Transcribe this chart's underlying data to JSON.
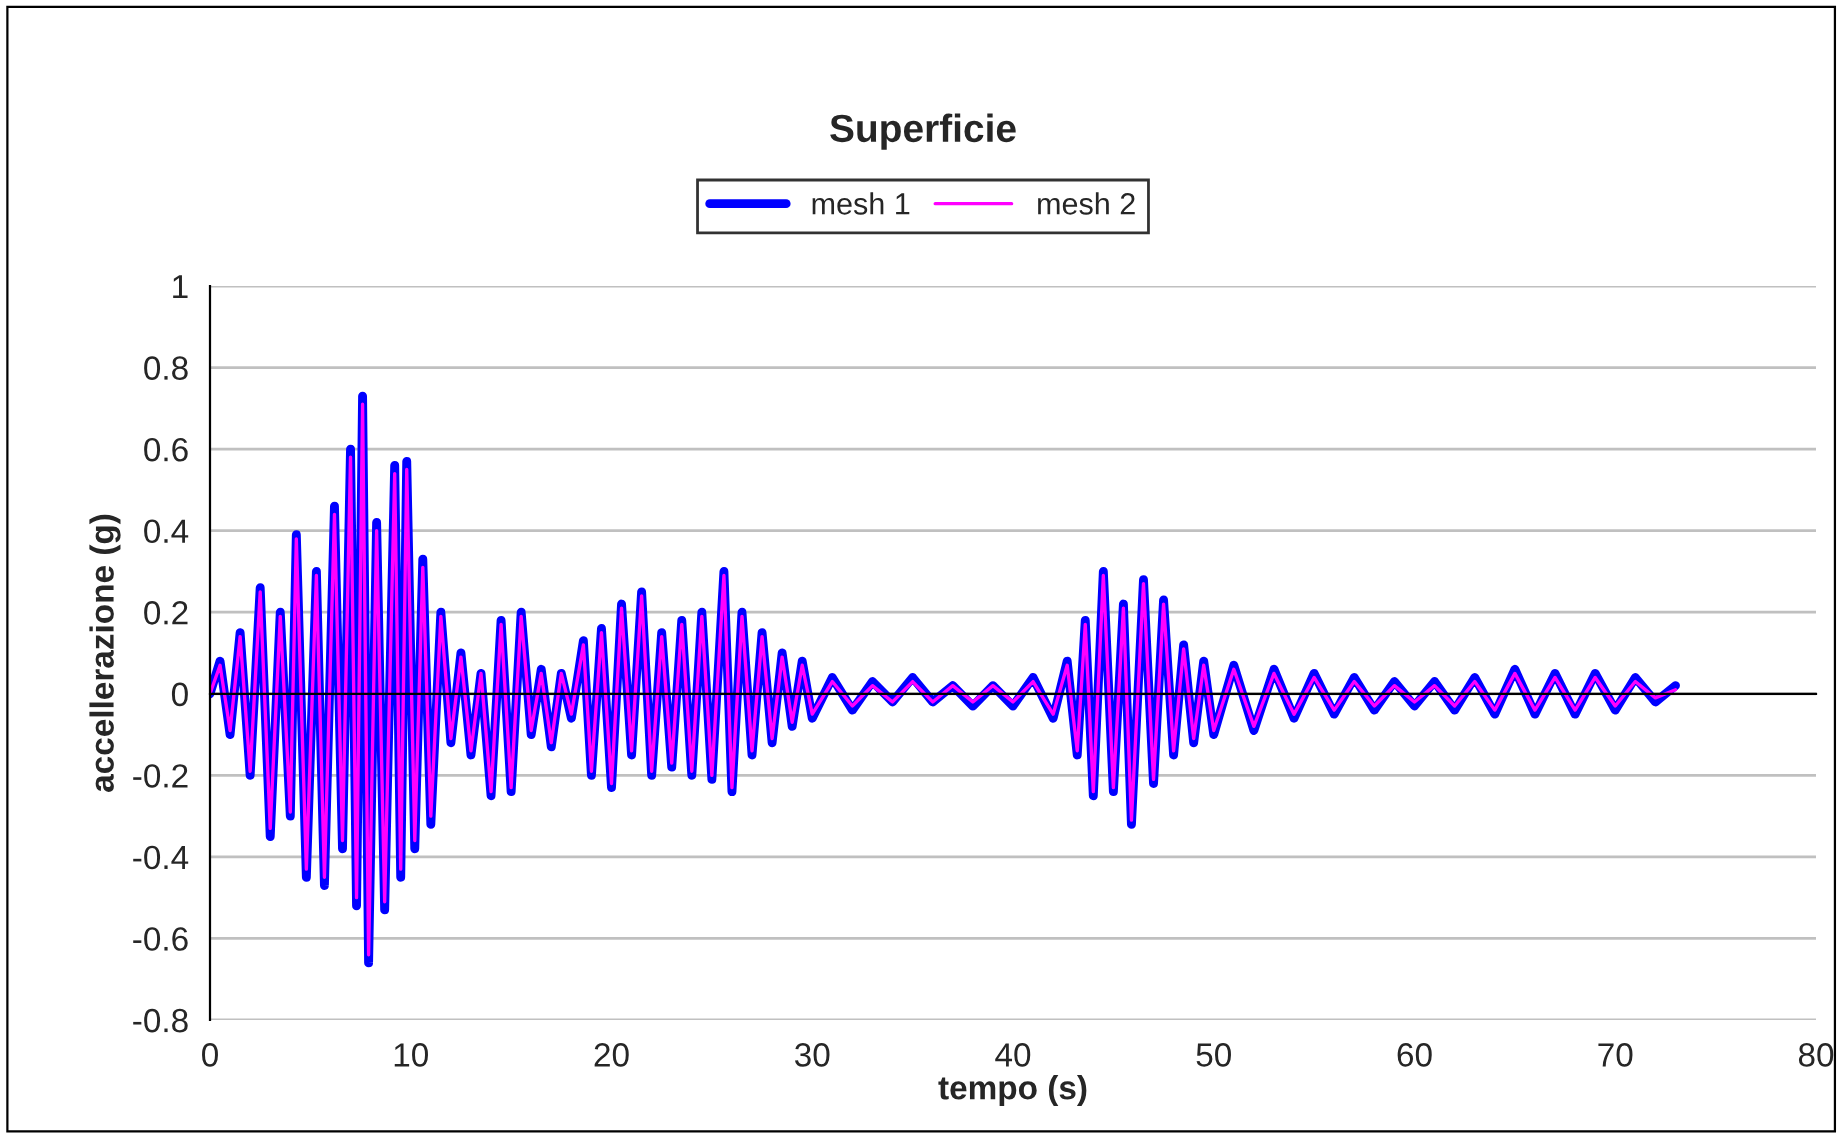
{
  "chart_data": {
    "type": "line",
    "title": "Superficie",
    "xlabel": "tempo (s)",
    "ylabel": "accellerazione (g)",
    "x": [
      0,
      0.5,
      1,
      1.5,
      2,
      2.5,
      3,
      3.5,
      4,
      4.3,
      4.8,
      5.3,
      5.7,
      6.2,
      6.6,
      7.0,
      7.3,
      7.6,
      7.9,
      8.3,
      8.7,
      9.2,
      9.5,
      9.8,
      10.2,
      10.6,
      11,
      11.5,
      12,
      12.5,
      13,
      13.5,
      14,
      14.5,
      15,
      15.5,
      16,
      16.5,
      17,
      17.5,
      18,
      18.6,
      19,
      19.5,
      20,
      20.5,
      21,
      21.5,
      22,
      22.5,
      23,
      23.5,
      24,
      24.5,
      25,
      25.6,
      26,
      26.5,
      27,
      27.5,
      28,
      28.5,
      29,
      29.5,
      30,
      31,
      32,
      33,
      34,
      35,
      36,
      37,
      38,
      39,
      40,
      41,
      42,
      42.7,
      43.2,
      43.6,
      44,
      44.5,
      45,
      45.5,
      45.9,
      46.5,
      47,
      47.5,
      48,
      48.5,
      49,
      49.5,
      50,
      51,
      52,
      53,
      54,
      55,
      56,
      57,
      58,
      59,
      60,
      61,
      62,
      63,
      64,
      65,
      66,
      67,
      68,
      69,
      70,
      71,
      72,
      73
    ],
    "series": [
      {
        "name": "mesh 1",
        "color": "#0000ff",
        "values": [
          0,
          0.08,
          -0.1,
          0.15,
          -0.2,
          0.26,
          -0.35,
          0.2,
          -0.3,
          0.39,
          -0.45,
          0.3,
          -0.47,
          0.46,
          -0.38,
          0.6,
          -0.52,
          0.73,
          -0.66,
          0.42,
          -0.53,
          0.56,
          -0.45,
          0.57,
          -0.38,
          0.33,
          -0.32,
          0.2,
          -0.12,
          0.1,
          -0.15,
          0.05,
          -0.25,
          0.18,
          -0.24,
          0.2,
          -0.1,
          0.06,
          -0.13,
          0.05,
          -0.06,
          0.13,
          -0.2,
          0.16,
          -0.23,
          0.22,
          -0.15,
          0.25,
          -0.2,
          0.15,
          -0.18,
          0.18,
          -0.2,
          0.2,
          -0.21,
          0.3,
          -0.24,
          0.2,
          -0.15,
          0.15,
          -0.12,
          0.1,
          -0.08,
          0.08,
          -0.06,
          0.04,
          -0.04,
          0.03,
          -0.02,
          0.04,
          -0.02,
          0.02,
          -0.03,
          0.02,
          -0.03,
          0.04,
          -0.06,
          0.08,
          -0.15,
          0.18,
          -0.25,
          0.3,
          -0.24,
          0.22,
          -0.32,
          0.28,
          -0.22,
          0.23,
          -0.15,
          0.12,
          -0.12,
          0.08,
          -0.1,
          0.07,
          -0.09,
          0.06,
          -0.06,
          0.05,
          -0.05,
          0.04,
          -0.04,
          0.03,
          -0.03,
          0.03,
          -0.04,
          0.04,
          -0.05,
          0.06,
          -0.05,
          0.05,
          -0.05,
          0.05,
          -0.04,
          0.04,
          -0.02,
          0.02
        ]
      },
      {
        "name": "mesh 2",
        "color": "#ff00ff",
        "values": [
          0,
          0.07,
          -0.09,
          0.14,
          -0.19,
          0.25,
          -0.33,
          0.19,
          -0.29,
          0.38,
          -0.43,
          0.29,
          -0.45,
          0.44,
          -0.36,
          0.58,
          -0.5,
          0.71,
          -0.64,
          0.4,
          -0.51,
          0.54,
          -0.43,
          0.55,
          -0.36,
          0.31,
          -0.3,
          0.19,
          -0.11,
          0.09,
          -0.14,
          0.05,
          -0.24,
          0.17,
          -0.23,
          0.19,
          -0.09,
          0.05,
          -0.12,
          0.05,
          -0.05,
          0.12,
          -0.19,
          0.15,
          -0.22,
          0.21,
          -0.14,
          0.24,
          -0.19,
          0.14,
          -0.17,
          0.17,
          -0.19,
          0.19,
          -0.2,
          0.29,
          -0.23,
          0.19,
          -0.14,
          0.14,
          -0.11,
          0.09,
          -0.07,
          0.07,
          -0.05,
          0.03,
          -0.03,
          0.02,
          -0.02,
          0.03,
          -0.02,
          0.02,
          -0.02,
          0.02,
          -0.02,
          0.03,
          -0.05,
          0.07,
          -0.14,
          0.17,
          -0.24,
          0.29,
          -0.23,
          0.21,
          -0.31,
          0.27,
          -0.21,
          0.22,
          -0.14,
          0.11,
          -0.11,
          0.07,
          -0.09,
          0.06,
          -0.08,
          0.05,
          -0.05,
          0.04,
          -0.04,
          0.03,
          -0.03,
          0.02,
          -0.02,
          0.02,
          -0.03,
          0.03,
          -0.04,
          0.05,
          -0.04,
          0.04,
          -0.04,
          0.04,
          -0.03,
          0.03,
          -0.01,
          0.01
        ]
      }
    ],
    "xlim": [
      0,
      80
    ],
    "xticks": [
      0,
      10,
      20,
      30,
      40,
      50,
      60,
      70,
      80
    ],
    "ylim": [
      -0.8,
      1
    ],
    "yticks": [
      -0.8,
      -0.6,
      -0.4,
      -0.2,
      0,
      0.2,
      0.4,
      0.6,
      0.8,
      1
    ],
    "grid": "y",
    "legend": "top",
    "line_style": "solid",
    "marker": "none"
  }
}
